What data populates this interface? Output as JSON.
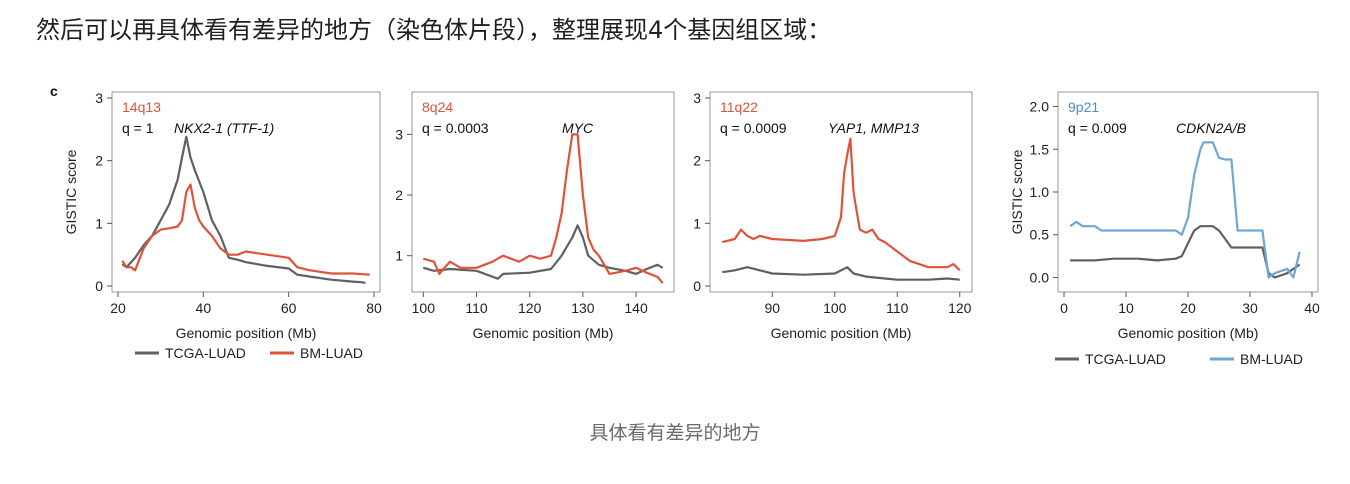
{
  "heading": "然后可以再具体看有差异的地方（染色体片段），整理展现4个基因组区域：",
  "panel_label": "c",
  "caption": "具体看有差异的地方",
  "legends": [
    {
      "items": [
        {
          "label": "TCGA-LUAD",
          "color": "#606060"
        },
        {
          "label": "BM-LUAD",
          "color": "#e0533a"
        }
      ]
    },
    {
      "items": [
        {
          "label": "TCGA-LUAD",
          "color": "#606060"
        },
        {
          "label": "BM-LUAD",
          "color": "#6fa6d4"
        }
      ]
    }
  ],
  "chart_data": [
    {
      "type": "line",
      "region": "14q13",
      "region_color": "#e0533a",
      "q_text": "q = 1",
      "gene": "NKX2-1 (TTF-1)",
      "xlabel": "Genomic position (Mb)",
      "ylabel": "GISTIC score",
      "xlim": [
        20,
        80
      ],
      "ylim": [
        0,
        3
      ],
      "xticks": [
        20,
        40,
        60,
        80
      ],
      "yticks": [
        0,
        1,
        2,
        3
      ],
      "series": [
        {
          "name": "TCGA-LUAD",
          "color": "#606060",
          "x": [
            21,
            22,
            24,
            26,
            28,
            30,
            32,
            34,
            35,
            36,
            37,
            38,
            40,
            42,
            44,
            46,
            48,
            50,
            55,
            60,
            62,
            65,
            70,
            75,
            77,
            78
          ],
          "y": [
            0.35,
            0.3,
            0.45,
            0.65,
            0.8,
            1.05,
            1.3,
            1.7,
            2.05,
            2.38,
            2.05,
            1.85,
            1.5,
            1.05,
            0.8,
            0.45,
            0.42,
            0.38,
            0.32,
            0.28,
            0.18,
            0.15,
            0.1,
            0.07,
            0.06,
            0.05
          ]
        },
        {
          "name": "BM-LUAD",
          "color": "#e0533a",
          "x": [
            21,
            22,
            23,
            24,
            26,
            28,
            30,
            32,
            34,
            35,
            36,
            37,
            38,
            39,
            40,
            42,
            44,
            46,
            48,
            50,
            55,
            60,
            62,
            65,
            70,
            75,
            79
          ],
          "y": [
            0.4,
            0.3,
            0.3,
            0.25,
            0.6,
            0.8,
            0.9,
            0.92,
            0.95,
            1.05,
            1.5,
            1.62,
            1.25,
            1.05,
            0.95,
            0.8,
            0.6,
            0.5,
            0.5,
            0.55,
            0.5,
            0.45,
            0.3,
            0.25,
            0.2,
            0.2,
            0.18
          ]
        }
      ]
    },
    {
      "type": "line",
      "region": "8q24",
      "region_color": "#e0533a",
      "q_text": "q = 0.0003",
      "gene": "MYC",
      "xlabel": "Genomic position (Mb)",
      "ylabel": "",
      "xlim": [
        99,
        146
      ],
      "ylim": [
        0.5,
        3.6
      ],
      "xticks": [
        100,
        110,
        120,
        130,
        140
      ],
      "yticks": [
        1,
        2,
        3
      ],
      "series": [
        {
          "name": "TCGA-LUAD",
          "color": "#606060",
          "x": [
            100,
            102,
            105,
            110,
            114,
            115,
            120,
            124,
            126,
            127,
            128,
            129,
            130,
            131,
            133,
            135,
            138,
            140,
            142,
            144,
            145
          ],
          "y": [
            0.8,
            0.75,
            0.78,
            0.75,
            0.62,
            0.7,
            0.72,
            0.78,
            1.0,
            1.15,
            1.3,
            1.5,
            1.3,
            1.0,
            0.85,
            0.8,
            0.75,
            0.7,
            0.78,
            0.85,
            0.8
          ]
        },
        {
          "name": "BM-LUAD",
          "color": "#e0533a",
          "x": [
            100,
            102,
            103,
            105,
            107,
            110,
            113,
            115,
            118,
            120,
            122,
            124,
            125,
            126,
            127,
            128,
            129,
            130,
            131,
            132,
            133,
            135,
            138,
            140,
            142,
            144,
            145
          ],
          "y": [
            0.95,
            0.9,
            0.7,
            0.9,
            0.8,
            0.8,
            0.9,
            1.0,
            0.9,
            1.0,
            0.95,
            1.0,
            1.3,
            1.7,
            2.4,
            3.0,
            3.0,
            2.0,
            1.3,
            1.1,
            1.0,
            0.7,
            0.75,
            0.8,
            0.72,
            0.65,
            0.55
          ]
        }
      ]
    },
    {
      "type": "line",
      "region": "11q22",
      "region_color": "#e0533a",
      "q_text": "q = 0.0009",
      "gene": "YAP1, MMP13",
      "xlabel": "Genomic position (Mb)",
      "ylabel": "",
      "xlim": [
        81,
        121
      ],
      "ylim": [
        0,
        3
      ],
      "xticks": [
        90,
        100,
        110,
        120
      ],
      "yticks": [
        0,
        1,
        2,
        3
      ],
      "series": [
        {
          "name": "TCGA-LUAD",
          "color": "#606060",
          "x": [
            82,
            84,
            86,
            88,
            90,
            95,
            100,
            102,
            103,
            105,
            110,
            115,
            118,
            120
          ],
          "y": [
            0.22,
            0.25,
            0.3,
            0.25,
            0.2,
            0.18,
            0.2,
            0.3,
            0.2,
            0.15,
            0.1,
            0.1,
            0.12,
            0.1
          ]
        },
        {
          "name": "BM-LUAD",
          "color": "#e0533a",
          "x": [
            82,
            84,
            85,
            86,
            87,
            88,
            90,
            95,
            98,
            100,
            101,
            101.5,
            102,
            102.5,
            103,
            103.5,
            104,
            105,
            106,
            107,
            108,
            110,
            112,
            115,
            118,
            119,
            120
          ],
          "y": [
            0.7,
            0.75,
            0.9,
            0.8,
            0.75,
            0.8,
            0.75,
            0.72,
            0.75,
            0.8,
            1.1,
            1.8,
            2.1,
            2.35,
            1.5,
            1.2,
            0.9,
            0.85,
            0.9,
            0.75,
            0.7,
            0.55,
            0.4,
            0.3,
            0.3,
            0.35,
            0.25
          ]
        }
      ]
    },
    {
      "type": "line",
      "region": "9p21",
      "region_color": "#4a90c8",
      "q_text": "q = 0.009",
      "gene": "CDKN2A/B",
      "xlabel": "Genomic position (Mb)",
      "ylabel": "GISTIC score",
      "xlim": [
        0,
        40
      ],
      "ylim": [
        -0.1,
        2.1
      ],
      "xticks": [
        0,
        10,
        20,
        30,
        40
      ],
      "yticks": [
        0,
        0.5,
        1.0,
        1.5,
        2.0
      ],
      "series": [
        {
          "name": "TCGA-LUAD",
          "color": "#606060",
          "x": [
            1,
            5,
            8,
            12,
            15,
            18,
            19,
            20,
            21,
            22,
            24,
            25,
            27,
            28,
            30,
            32,
            33,
            34,
            36,
            37,
            38
          ],
          "y": [
            0.2,
            0.2,
            0.22,
            0.22,
            0.2,
            0.22,
            0.25,
            0.4,
            0.55,
            0.6,
            0.6,
            0.55,
            0.35,
            0.35,
            0.35,
            0.35,
            0.05,
            0.0,
            0.05,
            0.1,
            0.15
          ]
        },
        {
          "name": "BM-LUAD",
          "color": "#6fa6d4",
          "x": [
            1,
            2,
            3,
            5,
            6,
            8,
            10,
            12,
            15,
            18,
            19,
            20,
            21,
            22,
            22.5,
            24,
            25,
            26,
            27,
            28,
            30,
            32,
            33,
            34,
            36,
            37,
            38
          ],
          "y": [
            0.6,
            0.65,
            0.6,
            0.6,
            0.55,
            0.55,
            0.55,
            0.55,
            0.55,
            0.55,
            0.5,
            0.7,
            1.2,
            1.5,
            1.58,
            1.58,
            1.4,
            1.38,
            1.38,
            0.55,
            0.55,
            0.55,
            0.0,
            0.05,
            0.1,
            0.0,
            0.3
          ]
        }
      ]
    }
  ]
}
